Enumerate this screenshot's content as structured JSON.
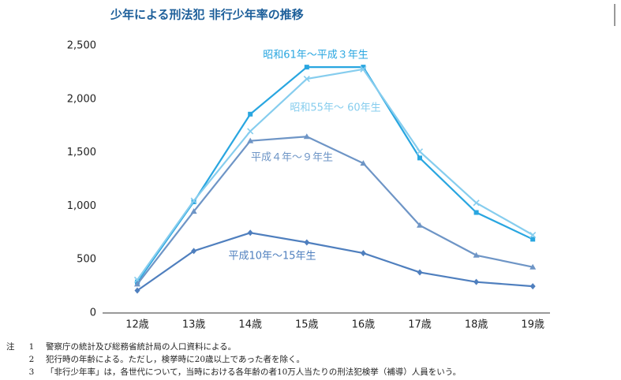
{
  "chart_data": {
    "type": "line",
    "title": "少年による刑法犯 非行少年率の推移",
    "categories": [
      "12歳",
      "13歳",
      "14歳",
      "15歳",
      "16歳",
      "17歳",
      "18歳",
      "19歳"
    ],
    "series": [
      {
        "name": "昭和61年〜平成３年生",
        "color": "#29a6e0",
        "marker": "square",
        "values": [
          290,
          1040,
          1860,
          2300,
          2300,
          1450,
          940,
          690
        ]
      },
      {
        "name": "昭和55年〜 60年生",
        "color": "#86cdee",
        "marker": "x",
        "values": [
          310,
          1050,
          1700,
          2190,
          2280,
          1510,
          1030,
          730
        ]
      },
      {
        "name": "平成４年〜９年生",
        "color": "#6e95c6",
        "marker": "triangle",
        "values": [
          270,
          950,
          1610,
          1650,
          1400,
          820,
          540,
          430
        ]
      },
      {
        "name": "平成10年〜15年生",
        "color": "#4f7fbe",
        "marker": "diamond",
        "values": [
          210,
          580,
          750,
          660,
          560,
          380,
          290,
          250
        ]
      }
    ],
    "ylim": [
      0,
      2500
    ],
    "yticks": [
      0,
      500,
      {
        "value": 1000,
        "label": "1,000"
      },
      {
        "value": 1500,
        "label": "1,500"
      },
      {
        "value": 2000,
        "label": "2,000"
      },
      {
        "value": 2500,
        "label": "2,500"
      }
    ],
    "grid": false,
    "notes_label": "注",
    "notes": [
      {
        "number": "1",
        "text": "警察庁の統計及び総務省統計局の人口資料による。"
      },
      {
        "number": "2",
        "text": "犯行時の年齢による。ただし，検挙時に20歳以上であった者を除く。"
      },
      {
        "number": "3",
        "text": "「非行少年率」は，各世代について，当時における各年齢の者10万人当たりの刑法犯検挙（補導）人員をいう。"
      }
    ]
  }
}
